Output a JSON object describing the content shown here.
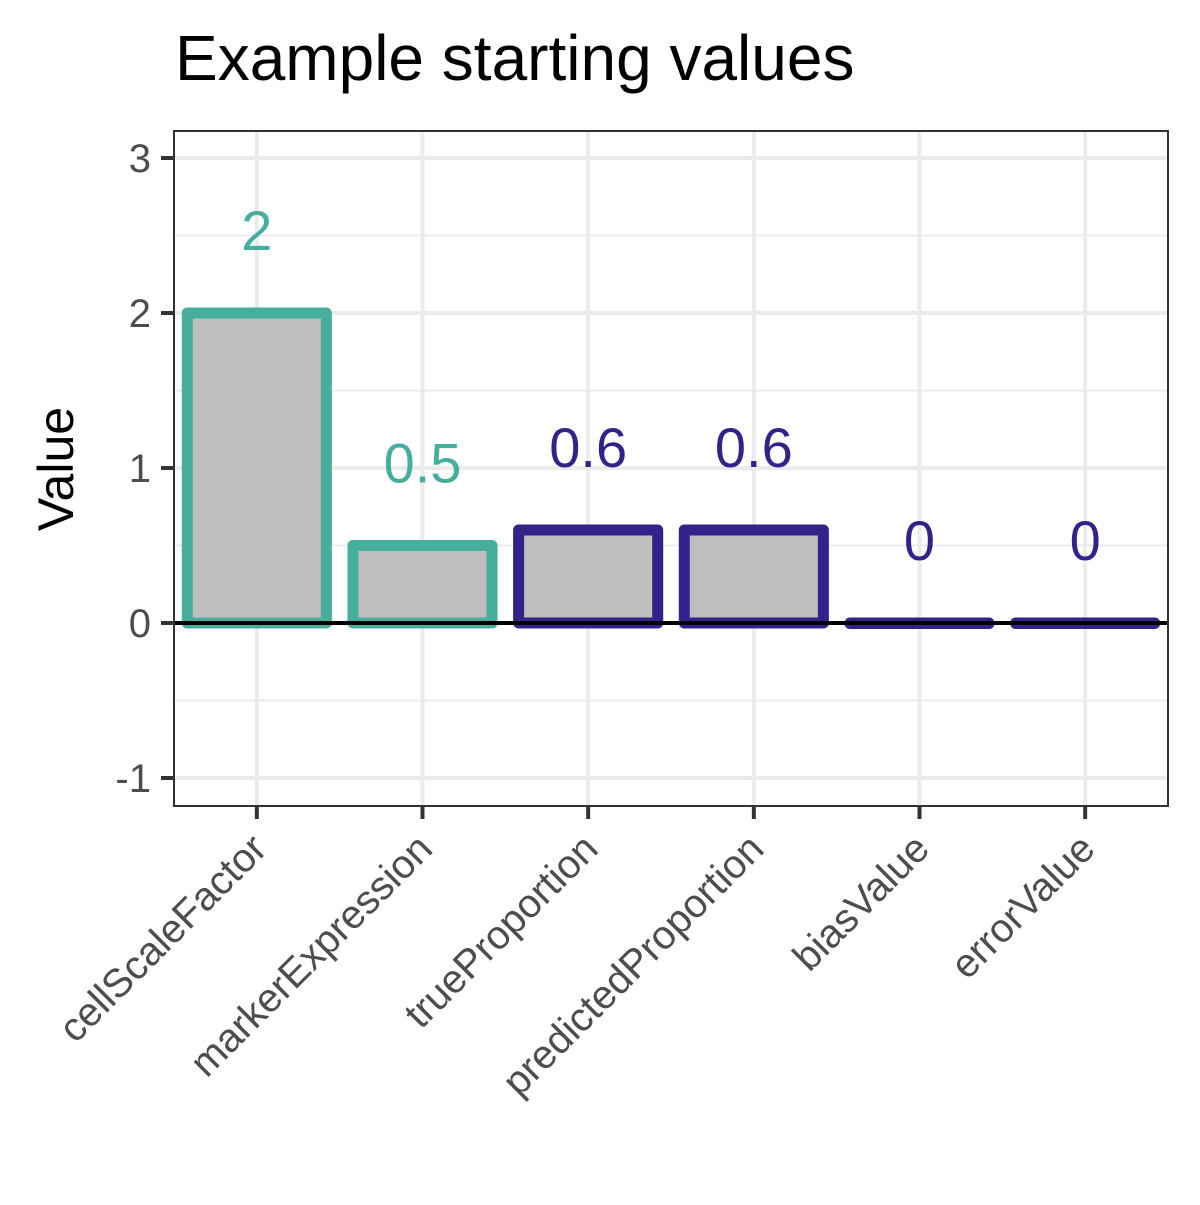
{
  "chart_data": {
    "type": "bar",
    "title": "Example starting values",
    "xlabel": "",
    "ylabel": "Value",
    "categories": [
      "cellScaleFactor",
      "markerExpression",
      "trueProportion",
      "predictedProportion",
      "biasValue",
      "errorValue"
    ],
    "values": [
      2,
      0.5,
      0.6,
      0.6,
      0,
      0
    ],
    "data_labels": [
      "2",
      "0.5",
      "0.6",
      "0.6",
      "0",
      "0"
    ],
    "outline_colors": [
      "#46ae9c",
      "#46ae9c",
      "#32228a",
      "#32228a",
      "#32228a",
      "#32228a"
    ],
    "bar_fill": "#bebebe",
    "ylim": [
      -1.2,
      3.2
    ],
    "yticks": [
      -1,
      0,
      1,
      2,
      3
    ],
    "ytick_labels": [
      "-1",
      "0",
      "1",
      "2",
      "3"
    ],
    "zero_line": true,
    "grid": true,
    "legend": "none"
  },
  "colors": {
    "teal": "#46ae9c",
    "indigo": "#32228a",
    "grid": "#ebebeb",
    "panel_border": "#333333",
    "axis_text": "#4d4d4d",
    "title_text": "#000000"
  }
}
